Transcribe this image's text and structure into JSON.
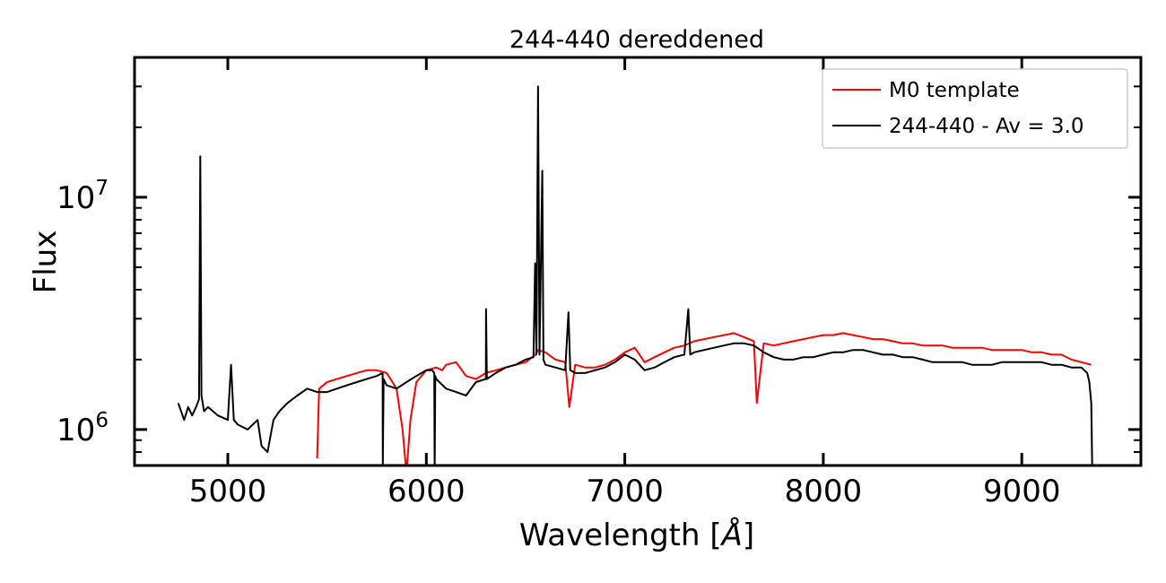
{
  "chart_data": {
    "type": "line",
    "title": "244-440 dereddened",
    "xlabel": "Wavelength [Å]",
    "xlabel_prefix": "Wavelength [",
    "xlabel_unit": "Å",
    "xlabel_suffix": "]",
    "ylabel": "Flux",
    "xlim": [
      4530,
      9600
    ],
    "ylim": [
      700000,
      40000000
    ],
    "yscale": "log",
    "x_ticks": [
      5000,
      6000,
      7000,
      8000,
      9000
    ],
    "x_tick_labels": [
      "5000",
      "6000",
      "7000",
      "8000",
      "9000"
    ],
    "y_ticks": [
      1000000,
      10000000
    ],
    "y_tick_labels": [
      {
        "base": "10",
        "exp": "6"
      },
      {
        "base": "10",
        "exp": "7"
      }
    ],
    "legend_position": "upper right",
    "series": [
      {
        "name": "M0 template",
        "color": "#ff0000",
        "x": [
          5450,
          5460,
          5500,
          5550,
          5600,
          5650,
          5700,
          5750,
          5800,
          5850,
          5880,
          5900,
          5920,
          5950,
          6000,
          6050,
          6080,
          6100,
          6150,
          6200,
          6250,
          6300,
          6350,
          6400,
          6450,
          6500,
          6550,
          6563,
          6600,
          6650,
          6700,
          6720,
          6750,
          6800,
          6850,
          6900,
          6950,
          7000,
          7050,
          7100,
          7150,
          7200,
          7250,
          7300,
          7350,
          7400,
          7450,
          7500,
          7550,
          7600,
          7650,
          7665,
          7700,
          7750,
          7800,
          7850,
          7900,
          7950,
          8000,
          8050,
          8100,
          8150,
          8200,
          8250,
          8300,
          8350,
          8400,
          8450,
          8500,
          8550,
          8600,
          8650,
          8700,
          8750,
          8800,
          8850,
          8900,
          8950,
          9000,
          9050,
          9100,
          9150,
          9200,
          9250,
          9300,
          9350
        ],
        "values": [
          750000,
          1500000,
          1600000,
          1650000,
          1700000,
          1750000,
          1800000,
          1800000,
          1750000,
          1500000,
          1000000,
          650000,
          1100000,
          1600000,
          1800000,
          1850000,
          1800000,
          1900000,
          1950000,
          1700000,
          1650000,
          1750000,
          1800000,
          1850000,
          1900000,
          1950000,
          2100000,
          2200000,
          2150000,
          2000000,
          1950000,
          1250000,
          1900000,
          1850000,
          1850000,
          1900000,
          2000000,
          2150000,
          2250000,
          1950000,
          2050000,
          2150000,
          2250000,
          2300000,
          2400000,
          2450000,
          2500000,
          2550000,
          2600000,
          2500000,
          2400000,
          1300000,
          2350000,
          2300000,
          2350000,
          2400000,
          2450000,
          2500000,
          2550000,
          2550000,
          2600000,
          2550000,
          2500000,
          2450000,
          2450000,
          2400000,
          2350000,
          2350000,
          2300000,
          2300000,
          2300000,
          2250000,
          2250000,
          2250000,
          2250000,
          2200000,
          2200000,
          2200000,
          2200000,
          2150000,
          2150000,
          2100000,
          2100000,
          2000000,
          1950000,
          1900000
        ]
      },
      {
        "name": "244-440 - Av = 3.0",
        "color": "#000000",
        "x": [
          4750,
          4780,
          4800,
          4820,
          4840,
          4855,
          4861,
          4867,
          4880,
          4900,
          4950,
          5000,
          5016,
          5030,
          5050,
          5100,
          5150,
          5170,
          5200,
          5230,
          5260,
          5300,
          5350,
          5400,
          5450,
          5500,
          5550,
          5600,
          5650,
          5700,
          5750,
          5780,
          5781,
          5785,
          5800,
          5850,
          5900,
          5950,
          6000,
          6030,
          6040,
          6042,
          6045,
          6050,
          6100,
          6150,
          6200,
          6250,
          6300,
          6301,
          6305,
          6350,
          6400,
          6450,
          6500,
          6540,
          6548,
          6555,
          6563,
          6570,
          6584,
          6590,
          6600,
          6650,
          6700,
          6716,
          6725,
          6750,
          6800,
          6850,
          6900,
          6950,
          7000,
          7050,
          7100,
          7150,
          7200,
          7250,
          7300,
          7320,
          7330,
          7350,
          7400,
          7450,
          7500,
          7550,
          7600,
          7650,
          7700,
          7750,
          7800,
          7850,
          7900,
          7950,
          8000,
          8050,
          8100,
          8150,
          8200,
          8250,
          8300,
          8350,
          8400,
          8450,
          8500,
          8550,
          8600,
          8650,
          8700,
          8750,
          8800,
          8850,
          8900,
          8950,
          9000,
          9050,
          9100,
          9150,
          9200,
          9250,
          9300,
          9330,
          9340,
          9350,
          9355
        ],
        "values": [
          1300000,
          1100000,
          1250000,
          1150000,
          1250000,
          1350000,
          15000000,
          1400000,
          1200000,
          1250000,
          1150000,
          1100000,
          1900000,
          1100000,
          1050000,
          1000000,
          1100000,
          850000,
          800000,
          1100000,
          1200000,
          1300000,
          1400000,
          1500000,
          1450000,
          1450000,
          1500000,
          1550000,
          1600000,
          1650000,
          1700000,
          1750000,
          700000,
          1650000,
          1550000,
          1500000,
          1600000,
          1700000,
          1800000,
          1800000,
          1750000,
          650000,
          1700000,
          1650000,
          1500000,
          1450000,
          1400000,
          1600000,
          1650000,
          3300000,
          1650000,
          1750000,
          1850000,
          1900000,
          2000000,
          2050000,
          5200000,
          2100000,
          30000000,
          2100000,
          13000000,
          2000000,
          1900000,
          1850000,
          1800000,
          3200000,
          1800000,
          1750000,
          1750000,
          1800000,
          1850000,
          1950000,
          2100000,
          2000000,
          1800000,
          1850000,
          1950000,
          2050000,
          2100000,
          3300000,
          2100000,
          2150000,
          2200000,
          2250000,
          2300000,
          2350000,
          2350000,
          2300000,
          2150000,
          2050000,
          2000000,
          2000000,
          2050000,
          2050000,
          2100000,
          2150000,
          2150000,
          2200000,
          2200000,
          2150000,
          2100000,
          2100000,
          2050000,
          2050000,
          2000000,
          1950000,
          1950000,
          1950000,
          1950000,
          1900000,
          1900000,
          1900000,
          1950000,
          1950000,
          1950000,
          1950000,
          1950000,
          1900000,
          1900000,
          1850000,
          1850000,
          1750000,
          1600000,
          1300000,
          650000
        ]
      }
    ]
  }
}
